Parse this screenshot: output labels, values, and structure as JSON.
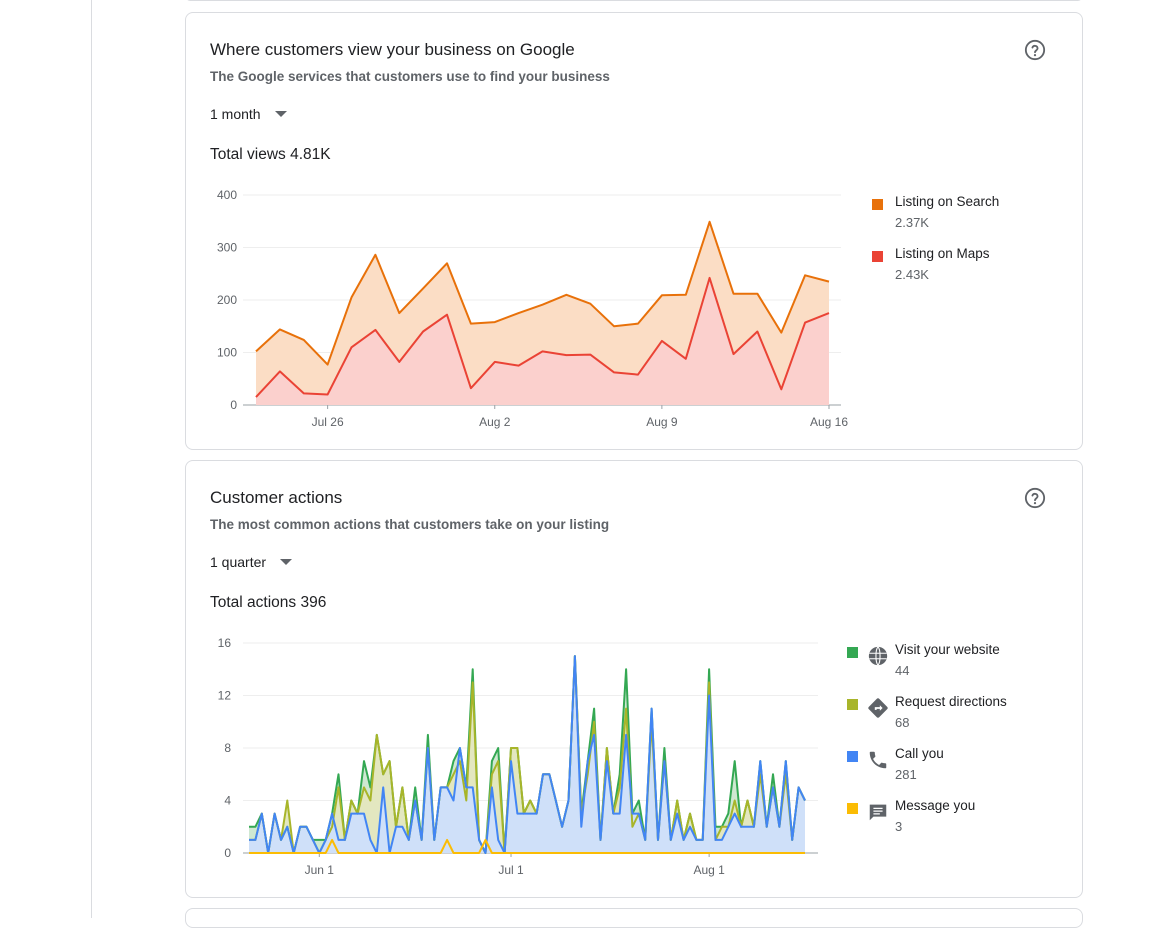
{
  "views_card": {
    "title": "Where customers view your business on Google",
    "subtitle": "The Google services that customers use to find your business",
    "range_label": "1 month",
    "total_label": "Total views 4.81K",
    "legend": [
      {
        "name": "Listing on Search",
        "value": "2.37K",
        "color": "#e8710a"
      },
      {
        "name": "Listing on Maps",
        "value": "2.43K",
        "color": "#ea4335"
      }
    ]
  },
  "actions_card": {
    "title": "Customer actions",
    "subtitle": "The most common actions that customers take on your listing",
    "range_label": "1 quarter",
    "total_label": "Total actions 396",
    "legend": [
      {
        "name": "Visit your website",
        "value": "44",
        "color": "#34a853",
        "icon": "globe-icon"
      },
      {
        "name": "Request directions",
        "value": "68",
        "color": "#a8b52a",
        "icon": "directions-icon"
      },
      {
        "name": "Call you",
        "value": "281",
        "color": "#4285f4",
        "icon": "phone-icon"
      },
      {
        "name": "Message you",
        "value": "3",
        "color": "#fbbc04",
        "icon": "message-icon"
      }
    ]
  },
  "chart_data": [
    {
      "type": "area",
      "stacked": true,
      "ylim": [
        0,
        400
      ],
      "yticks": [
        0,
        100,
        200,
        300,
        400
      ],
      "x_ticks": [
        {
          "label": "Jul 26",
          "index": 3
        },
        {
          "label": "Aug 2",
          "index": 10
        },
        {
          "label": "Aug 9",
          "index": 17
        },
        {
          "label": "Aug 16",
          "index": 24
        }
      ],
      "series": [
        {
          "name": "Listing on Maps",
          "color": "#ea4335",
          "fill": "#fbd0cd",
          "values": [
            15,
            64,
            22,
            20,
            110,
            143,
            82,
            140,
            172,
            32,
            82,
            75,
            102,
            95,
            96,
            62,
            58,
            122,
            88,
            242,
            97,
            140,
            30,
            157,
            175
          ]
        },
        {
          "name": "Listing on Search",
          "color": "#e8710a",
          "fill": "#fbddc5",
          "values": [
            87,
            80,
            102,
            57,
            95,
            143,
            93,
            82,
            98,
            123,
            76,
            100,
            89,
            115,
            97,
            88,
            97,
            87,
            122,
            107,
            115,
            72,
            108,
            90,
            60
          ]
        }
      ]
    },
    {
      "type": "area",
      "stacked": false,
      "ylim": [
        0,
        16
      ],
      "yticks": [
        0,
        4,
        8,
        12,
        16
      ],
      "x_ticks": [
        {
          "label": "Jun 1",
          "index": 11
        },
        {
          "label": "Jul 1",
          "index": 41
        },
        {
          "label": "Aug 1",
          "index": 72
        }
      ],
      "series": [
        {
          "name": "Visit your website",
          "color": "#34a853",
          "fill": "#cfe8d2",
          "values": [
            2,
            2,
            3,
            0,
            3,
            1,
            2,
            0,
            2,
            2,
            1,
            1,
            1,
            3,
            6,
            1,
            4,
            3,
            7,
            5,
            9,
            6,
            7,
            2,
            5,
            1,
            5,
            1,
            9,
            1,
            5,
            5,
            7,
            8,
            5,
            14,
            1,
            0,
            7,
            8,
            0,
            8,
            8,
            3,
            4,
            3,
            6,
            6,
            4,
            2,
            4,
            15,
            3,
            7,
            11,
            1,
            8,
            3,
            6,
            14,
            3,
            4,
            1,
            11,
            1,
            8,
            1,
            4,
            1,
            3,
            1,
            1,
            14,
            2,
            2,
            3,
            7,
            2,
            4,
            2,
            7,
            2,
            6,
            2,
            7,
            1,
            5,
            4
          ]
        },
        {
          "name": "Request directions",
          "color": "#a8b52a",
          "fill": "#e3e7c0",
          "values": [
            1,
            1,
            3,
            0,
            3,
            1,
            4,
            0,
            2,
            2,
            1,
            0,
            1,
            2,
            5,
            1,
            4,
            3,
            5,
            4,
            9,
            6,
            7,
            2,
            5,
            1,
            4,
            1,
            8,
            1,
            5,
            5,
            6,
            7,
            4,
            13,
            1,
            0,
            6,
            7,
            0,
            8,
            8,
            3,
            4,
            3,
            6,
            6,
            4,
            2,
            4,
            15,
            3,
            6,
            10,
            1,
            8,
            3,
            5,
            11,
            2,
            3,
            1,
            10,
            1,
            7,
            1,
            4,
            1,
            3,
            1,
            1,
            13,
            1,
            2,
            2,
            4,
            2,
            4,
            2,
            6,
            2,
            5,
            2,
            6,
            1,
            5,
            4
          ]
        },
        {
          "name": "Call you",
          "color": "#4285f4",
          "fill": "#cfe0f9",
          "values": [
            1,
            1,
            3,
            0,
            3,
            1,
            2,
            0,
            2,
            2,
            1,
            0,
            1,
            3,
            1,
            1,
            3,
            3,
            3,
            1,
            0,
            5,
            0,
            2,
            2,
            1,
            4,
            1,
            8,
            1,
            5,
            5,
            4,
            8,
            5,
            5,
            1,
            0,
            5,
            1,
            0,
            7,
            3,
            3,
            3,
            3,
            6,
            6,
            4,
            2,
            4,
            15,
            2,
            7,
            9,
            1,
            7,
            3,
            3,
            9,
            3,
            3,
            1,
            11,
            1,
            7,
            1,
            3,
            1,
            2,
            1,
            1,
            12,
            1,
            1,
            2,
            3,
            2,
            2,
            2,
            7,
            2,
            5,
            2,
            7,
            1,
            5,
            4
          ]
        },
        {
          "name": "Message you",
          "color": "#fbbc04",
          "fill": "none",
          "values": [
            0,
            0,
            0,
            0,
            0,
            0,
            0,
            0,
            0,
            0,
            0,
            0,
            0,
            1,
            0,
            0,
            0,
            0,
            0,
            0,
            0,
            0,
            0,
            0,
            0,
            0,
            0,
            0,
            0,
            0,
            0,
            1,
            0,
            0,
            0,
            0,
            0,
            1,
            0,
            0,
            0,
            0,
            0,
            0,
            0,
            0,
            0,
            0,
            0,
            0,
            0,
            0,
            0,
            0,
            0,
            0,
            0,
            0,
            0,
            0,
            0,
            0,
            0,
            0,
            0,
            0,
            0,
            0,
            0,
            0,
            0,
            0,
            0,
            0,
            0,
            0,
            0,
            0,
            0,
            0,
            0,
            0,
            0,
            0,
            0,
            0,
            0,
            0
          ]
        }
      ]
    }
  ]
}
